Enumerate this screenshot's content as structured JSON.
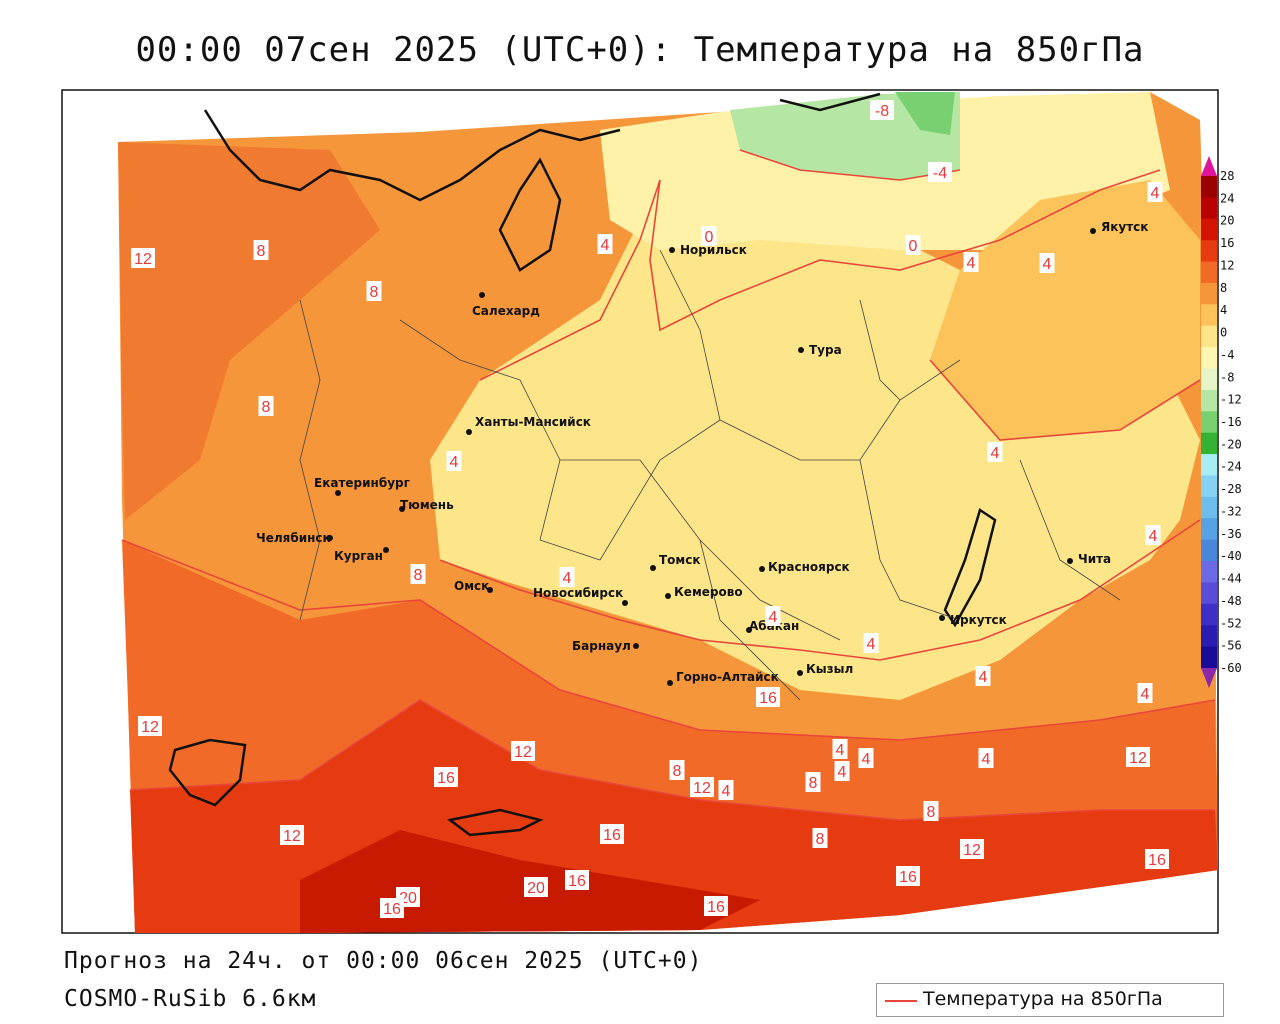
{
  "title": "00:00 07сен 2025 (UTC+0): Температура на 850гПа",
  "forecast_line": "Прогноз на 24ч. от 00:00 06сен 2025 (UTC+0)",
  "model_line": "COSMO-RuSib 6.6км",
  "legend_label": "Температура на 850гПа",
  "colorbar": {
    "labels": [
      "28",
      "24",
      "20",
      "16",
      "12",
      "8",
      "4",
      "0",
      "-4",
      "-8",
      "-12",
      "-16",
      "-20",
      "-24",
      "-28",
      "-32",
      "-36",
      "-40",
      "-44",
      "-48",
      "-52",
      "-56",
      "-60"
    ],
    "colors": [
      "#9a0000",
      "#b80000",
      "#d41400",
      "#e63a10",
      "#f26a28",
      "#f6963a",
      "#fbc35a",
      "#fde58a",
      "#fff6b4",
      "#e6f5c8",
      "#b6e6a4",
      "#78d070",
      "#34b234",
      "#a8ecf4",
      "#86d2f2",
      "#6cbcec",
      "#56a2e4",
      "#4a86da",
      "#6a6ae6",
      "#5a4cd8",
      "#3e30c6",
      "#2a1cb0",
      "#1a0c96"
    ],
    "top_arrow_color": "#e0149a",
    "bottom_arrow_color": "#8a2aa8"
  },
  "cities": [
    {
      "name": "Норильск"
    },
    {
      "name": "Якутск"
    },
    {
      "name": "Салехард"
    },
    {
      "name": "Тура"
    },
    {
      "name": "Ханты-Мансийск"
    },
    {
      "name": "Екатеринбург"
    },
    {
      "name": "Тюмень"
    },
    {
      "name": "Челябинск"
    },
    {
      "name": "Курган"
    },
    {
      "name": "Омск"
    },
    {
      "name": "Новосибирск"
    },
    {
      "name": "Томск"
    },
    {
      "name": "Кемерово"
    },
    {
      "name": "Красноярск"
    },
    {
      "name": "Барнаул"
    },
    {
      "name": "Абакан"
    },
    {
      "name": "Горно-Алтайск"
    },
    {
      "name": "Кызыл"
    },
    {
      "name": "Иркутск"
    },
    {
      "name": "Чита"
    }
  ],
  "isotherm_labels": [
    "-8",
    "-4",
    "4",
    "0",
    "0",
    "4",
    "4",
    "4",
    "12",
    "8",
    "8",
    "8",
    "4",
    "4",
    "4",
    "8",
    "4",
    "4",
    "4",
    "4",
    "4",
    "12",
    "12",
    "16",
    "12",
    "8",
    "12",
    "4",
    "8",
    "4",
    "4",
    "4",
    "4",
    "8",
    "16",
    "8",
    "12",
    "12",
    "16",
    "20",
    "16",
    "16",
    "16",
    "20",
    "16",
    "16"
  ]
}
